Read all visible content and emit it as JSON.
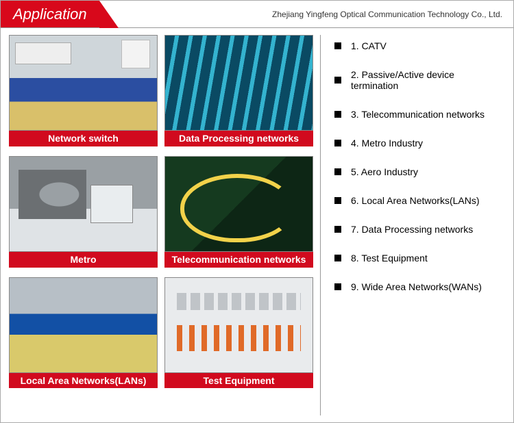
{
  "header": {
    "title": "Application",
    "company": "Zhejiang Yingfeng Optical Communication Technology Co., Ltd."
  },
  "cards": [
    {
      "caption": "Network switch",
      "scene": "s-switch"
    },
    {
      "caption": "Data Processing networks",
      "scene": "s-dpn"
    },
    {
      "caption": "Metro",
      "scene": "s-metro"
    },
    {
      "caption": "Telecommunication networks",
      "scene": "s-telecom"
    },
    {
      "caption": "Local Area Networks(LANs)",
      "scene": "s-lan"
    },
    {
      "caption": "Test Equipment",
      "scene": "s-test"
    }
  ],
  "list": [
    "1. CATV",
    "2. Passive/Active device termination",
    "3. Telecommunication networks",
    "4. Metro Industry",
    "5. Aero Industry",
    "6. Local Area Networks(LANs)",
    "7. Data Processing networks",
    "8. Test Equipment",
    "9. Wide Area Networks(WANs)"
  ],
  "colors": {
    "brand_red": "#d8081b",
    "caption_red": "#d10a1e",
    "border_gray": "#999999",
    "text": "#000000"
  }
}
